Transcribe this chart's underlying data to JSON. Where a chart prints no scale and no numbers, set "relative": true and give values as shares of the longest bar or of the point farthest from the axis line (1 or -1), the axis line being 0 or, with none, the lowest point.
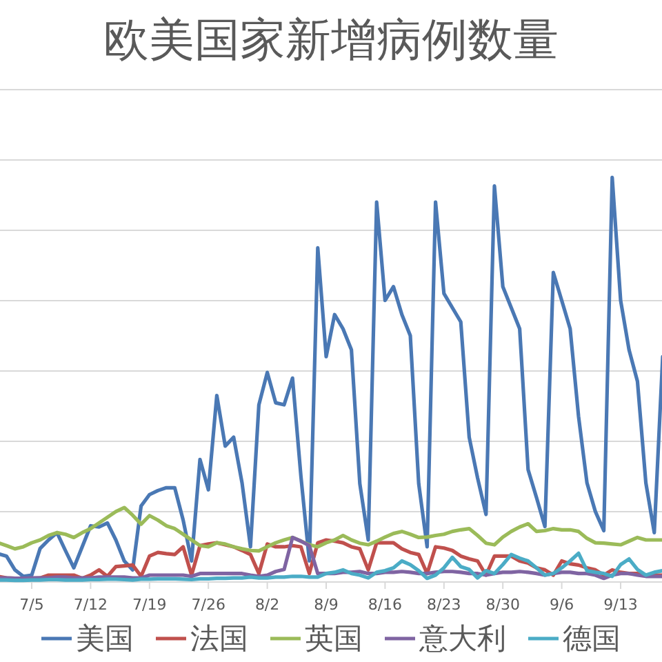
{
  "chart_data": {
    "type": "line",
    "title": "欧美国家新增病例数量",
    "relative": true,
    "grid": "y",
    "legend": "bottom",
    "categories": [
      null,
      null,
      null,
      null,
      "7/5",
      null,
      null,
      null,
      null,
      null,
      null,
      "7/12",
      null,
      null,
      null,
      null,
      null,
      null,
      "7/19",
      null,
      null,
      null,
      null,
      null,
      null,
      "7/26",
      null,
      null,
      null,
      null,
      null,
      null,
      "8/2",
      null,
      null,
      null,
      null,
      null,
      null,
      "8/9",
      null,
      null,
      null,
      null,
      null,
      null,
      "8/16",
      null,
      null,
      null,
      null,
      null,
      null,
      "8/23",
      null,
      null,
      null,
      null,
      null,
      null,
      "8/30",
      null,
      null,
      null,
      null,
      null,
      null,
      "9/6",
      null,
      null,
      null,
      null,
      null,
      null,
      "9/13",
      null,
      null,
      null,
      null,
      null
    ],
    "series": [
      {
        "name": "美国",
        "color": "#4a78b4",
        "values": [
          0.07,
          0.064,
          0.03,
          0.014,
          0.017,
          0.083,
          0.104,
          0.122,
          0.078,
          0.035,
          0.087,
          0.139,
          0.136,
          0.146,
          0.104,
          0.052,
          0.03,
          0.188,
          0.216,
          0.226,
          0.233,
          0.233,
          0.153,
          0.052,
          0.303,
          0.228,
          0.461,
          0.336,
          0.358,
          0.245,
          0.087,
          0.438,
          0.518,
          0.443,
          0.438,
          0.504,
          0.261,
          0.052,
          0.826,
          0.557,
          0.661,
          0.626,
          0.574,
          0.243,
          0.104,
          0.939,
          0.696,
          0.73,
          0.661,
          0.609,
          0.243,
          0.087,
          0.939,
          0.713,
          0.678,
          0.643,
          0.358,
          0.257,
          0.167,
          0.979,
          0.73,
          0.678,
          0.626,
          0.278,
          0.209,
          0.137,
          0.765,
          0.696,
          0.626,
          0.409,
          0.245,
          0.174,
          0.127,
          1,
          0.696,
          0.574,
          0.496,
          0.245,
          0.122,
          0.557
        ]
      },
      {
        "name": "法国",
        "color": "#c0504d",
        "values": [
          0.014,
          0.01,
          0.009,
          0.009,
          0.009,
          0.01,
          0.017,
          0.017,
          0.017,
          0.017,
          0.009,
          0.017,
          0.03,
          0.014,
          0.038,
          0.04,
          0.042,
          0.014,
          0.064,
          0.073,
          0.07,
          0.068,
          0.087,
          0.017,
          0.09,
          0.094,
          0.097,
          0.092,
          0.087,
          0.078,
          0.068,
          0.021,
          0.094,
          0.087,
          0.087,
          0.09,
          0.087,
          0.021,
          0.097,
          0.104,
          0.101,
          0.097,
          0.087,
          0.082,
          0.03,
          0.097,
          0.097,
          0.097,
          0.082,
          0.073,
          0.068,
          0.021,
          0.087,
          0.084,
          0.078,
          0.064,
          0.057,
          0.052,
          0.017,
          0.064,
          0.064,
          0.064,
          0.052,
          0.047,
          0.035,
          0.03,
          0.017,
          0.052,
          0.045,
          0.042,
          0.035,
          0.03,
          0.017,
          0.03,
          0.024,
          0.021,
          0.021,
          0.017,
          0.017,
          0.017
        ]
      },
      {
        "name": "英国",
        "color": "#9bbb59",
        "values": [
          0.097,
          0.09,
          0.082,
          0.087,
          0.097,
          0.104,
          0.115,
          0.122,
          0.118,
          0.11,
          0.122,
          0.132,
          0.146,
          0.16,
          0.174,
          0.184,
          0.165,
          0.143,
          0.164,
          0.153,
          0.139,
          0.132,
          0.118,
          0.104,
          0.09,
          0.087,
          0.097,
          0.094,
          0.087,
          0.082,
          0.078,
          0.077,
          0.087,
          0.097,
          0.104,
          0.11,
          0.101,
          0.092,
          0.087,
          0.097,
          0.104,
          0.115,
          0.104,
          0.096,
          0.092,
          0.101,
          0.111,
          0.12,
          0.125,
          0.118,
          0.11,
          0.111,
          0.115,
          0.118,
          0.125,
          0.129,
          0.132,
          0.115,
          0.096,
          0.092,
          0.111,
          0.125,
          0.136,
          0.144,
          0.125,
          0.127,
          0.132,
          0.129,
          0.129,
          0.125,
          0.108,
          0.097,
          0.096,
          0.094,
          0.092,
          0.101,
          0.11,
          0.104,
          0.104,
          0.104
        ]
      },
      {
        "name": "意大利",
        "color": "#7f64a2",
        "values": [
          0.01,
          0.01,
          0.009,
          0.009,
          0.01,
          0.01,
          0.01,
          0.012,
          0.012,
          0.01,
          0.01,
          0.01,
          0.012,
          0.012,
          0.012,
          0.012,
          0.01,
          0.01,
          0.017,
          0.017,
          0.017,
          0.017,
          0.017,
          0.014,
          0.021,
          0.021,
          0.021,
          0.021,
          0.021,
          0.021,
          0.017,
          0.014,
          0.017,
          0.026,
          0.031,
          0.11,
          0.101,
          0.09,
          0.021,
          0.021,
          0.021,
          0.024,
          0.024,
          0.026,
          0.021,
          0.021,
          0.024,
          0.024,
          0.026,
          0.024,
          0.021,
          0.021,
          0.024,
          0.026,
          0.026,
          0.024,
          0.021,
          0.021,
          0.017,
          0.021,
          0.024,
          0.024,
          0.026,
          0.024,
          0.021,
          0.017,
          0.021,
          0.024,
          0.024,
          0.021,
          0.021,
          0.017,
          0.009,
          0.017,
          0.021,
          0.021,
          0.017,
          0.014,
          0.014,
          0.014
        ]
      },
      {
        "name": "德国",
        "color": "#4bacc6",
        "values": [
          0.005,
          0.005,
          0.004,
          0.004,
          0.005,
          0.005,
          0.006,
          0.006,
          0.005,
          0.005,
          0.005,
          0.006,
          0.006,
          0.007,
          0.007,
          0.006,
          0.005,
          0.007,
          0.007,
          0.008,
          0.008,
          0.008,
          0.007,
          0.006,
          0.008,
          0.008,
          0.009,
          0.009,
          0.01,
          0.01,
          0.012,
          0.01,
          0.01,
          0.012,
          0.012,
          0.014,
          0.014,
          0.012,
          0.012,
          0.021,
          0.024,
          0.03,
          0.021,
          0.017,
          0.01,
          0.024,
          0.028,
          0.035,
          0.052,
          0.043,
          0.028,
          0.009,
          0.017,
          0.035,
          0.061,
          0.038,
          0.031,
          0.01,
          0.028,
          0.021,
          0.043,
          0.068,
          0.059,
          0.052,
          0.035,
          0.017,
          0.021,
          0.035,
          0.052,
          0.071,
          0.028,
          0.024,
          0.021,
          0.014,
          0.043,
          0.057,
          0.031,
          0.017,
          0.024,
          0.028
        ]
      }
    ]
  }
}
